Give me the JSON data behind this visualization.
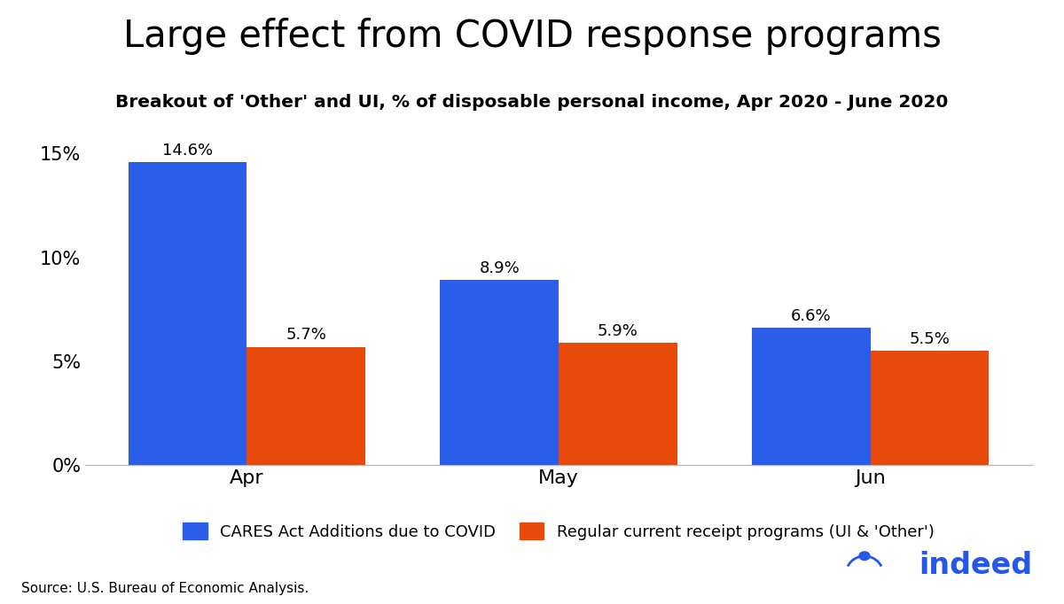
{
  "title": "Large effect from COVID response programs",
  "subtitle": "Breakout of 'Other' and UI, % of disposable personal income, Apr 2020 - June 2020",
  "categories": [
    "Apr",
    "May",
    "Jun"
  ],
  "cares_values": [
    14.6,
    8.9,
    6.6
  ],
  "regular_values": [
    5.7,
    5.9,
    5.5
  ],
  "cares_color": "#2B5EE8",
  "regular_color": "#E84A0C",
  "ylim": [
    0,
    16
  ],
  "yticks": [
    0,
    5,
    10,
    15
  ],
  "ytick_labels": [
    "0%",
    "5%",
    "10%",
    "15%"
  ],
  "legend_cares": "CARES Act Additions due to COVID",
  "legend_regular": "Regular current receipt programs (UI & 'Other')",
  "source": "Source: U.S. Bureau of Economic Analysis.",
  "indeed_color": "#2557E8",
  "bar_width": 0.38,
  "annotation_fontsize": 13,
  "title_fontsize": 30,
  "subtitle_fontsize": 14.5,
  "axis_tick_fontsize": 15,
  "legend_fontsize": 13,
  "source_fontsize": 11
}
